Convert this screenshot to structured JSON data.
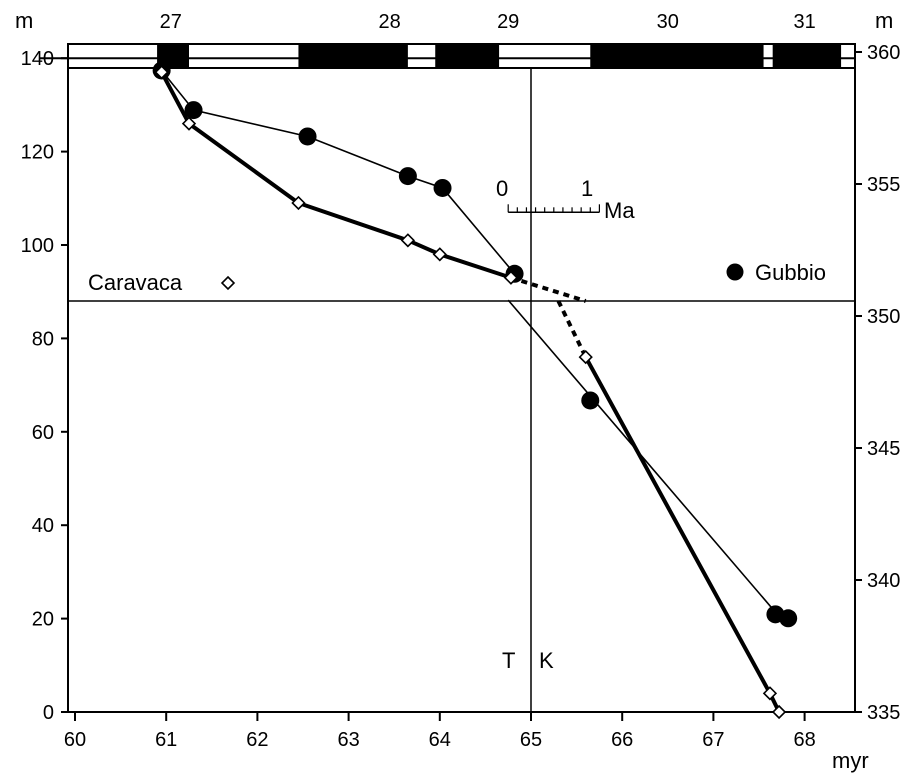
{
  "chart_data": {
    "type": "line",
    "title": "",
    "xlabel": "myr",
    "ylabel_left": "m",
    "ylabel_right": "m",
    "xlim": [
      60,
      68.4
    ],
    "ylim_left": [
      0,
      145
    ],
    "ylim_right": [
      335,
      360.5
    ],
    "x_ticks": [
      "60",
      "61",
      "62",
      "63",
      "64",
      "65",
      "66",
      "67",
      "68"
    ],
    "y_left_ticks": [
      "0",
      "20",
      "40",
      "60",
      "80",
      "100",
      "120",
      "140"
    ],
    "y_right_ticks": [
      "335",
      "340",
      "345",
      "350",
      "355",
      "360"
    ],
    "chron_labels": [
      "27",
      "28",
      "29",
      "30",
      "31"
    ],
    "chron_positions": [
      61.05,
      63.45,
      64.75,
      66.5,
      68.0
    ],
    "polarity_blocks": [
      [
        60.9,
        61.25
      ],
      [
        62.45,
        63.65
      ],
      [
        63.95,
        64.65
      ],
      [
        65.65,
        67.55
      ],
      [
        67.65,
        68.4
      ]
    ],
    "series": [
      {
        "name": "Gubbio",
        "axis": "right",
        "marker": "filled-circle",
        "x": [
          60.95,
          61.3,
          62.55,
          63.65,
          64.03,
          64.82,
          65.65,
          67.68,
          67.82
        ],
        "y": [
          359.3,
          357.8,
          356.8,
          355.3,
          354.85,
          351.6,
          346.8,
          338.7,
          338.55
        ]
      },
      {
        "name": "Caravaca",
        "axis": "left",
        "marker": "open-diamond",
        "x": [
          60.95,
          61.25,
          62.45,
          63.65,
          64.0,
          64.78,
          65.6,
          67.62,
          67.72
        ],
        "y": [
          137,
          126,
          109,
          101,
          98,
          93,
          76,
          4,
          0
        ]
      }
    ],
    "fit_line_gubbio": {
      "axis": "right",
      "x": [
        64.75,
        67.7
      ],
      "y": [
        350.6,
        338.7
      ]
    },
    "dashed_segments": [
      {
        "axis": "left",
        "x": [
          64.78,
          65.6
        ],
        "y": [
          93,
          88
        ]
      },
      {
        "axis": "left",
        "x": [
          65.3,
          65.6
        ],
        "y": [
          88,
          76
        ]
      }
    ],
    "reference_lines": {
      "kt_boundary_x": 65.0,
      "horizontal_y_left": 88,
      "top_y_left": 140
    },
    "boundary_labels": [
      "T",
      "K"
    ],
    "scale_bar": {
      "from": "0",
      "to": "1",
      "unit": "Ma",
      "x_start": 64.75,
      "x_end": 65.75,
      "y_left": 107
    },
    "legend": {
      "gubbio": "Gubbio",
      "caravaca": "Caravaca"
    },
    "grid": false
  }
}
